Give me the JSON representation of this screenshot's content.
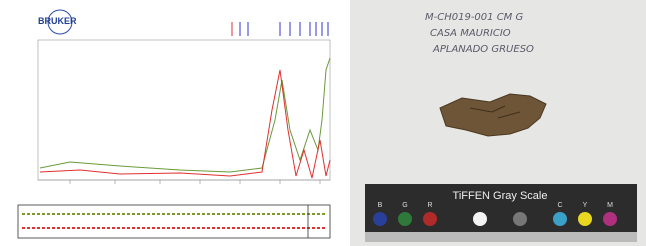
{
  "spectrum": {
    "logo": "BRUKER"
  },
  "photo": {
    "label_lines": [
      "M-CH019-001 CM G",
      "CASA MAURICIO",
      "APLANADO GRUESO"
    ],
    "card_title": "TiFFEN Gray Scale",
    "patches": [
      "B",
      "G",
      "R",
      "C",
      "Y",
      "M"
    ]
  }
}
